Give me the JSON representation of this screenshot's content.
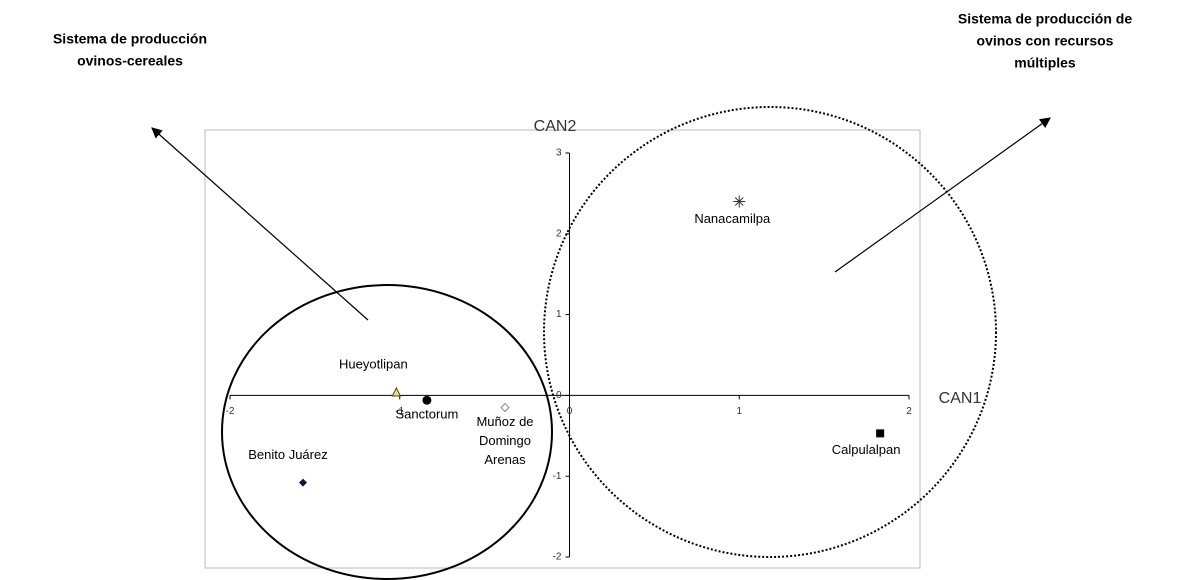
{
  "chart_data": {
    "type": "scatter",
    "xlabel": "CAN1",
    "ylabel": "CAN2",
    "xlim": [
      -2,
      2
    ],
    "ylim": [
      -2,
      3
    ],
    "xticks": [
      -2,
      -1,
      0,
      1,
      2
    ],
    "yticks": [
      -2,
      -1,
      0,
      1,
      2,
      3
    ],
    "series": [
      {
        "label": [
          "Nanacamilpa"
        ],
        "marker": "star",
        "color": "#333333",
        "x": [
          1.0
        ],
        "values": [
          2.4
        ]
      },
      {
        "label": [
          "Calpulalpan"
        ],
        "marker": "square",
        "color": "#000000",
        "x": [
          1.83
        ],
        "values": [
          -0.47
        ]
      },
      {
        "label": [
          "Benito Juárez"
        ],
        "marker": "diamond",
        "color": "#0a1a3a",
        "x": [
          -1.57
        ],
        "values": [
          -1.08
        ]
      },
      {
        "label": [
          "Hueyotlipan"
        ],
        "marker": "triangle",
        "color": "#4a4a00",
        "x": [
          -1.02
        ],
        "values": [
          0.03
        ]
      },
      {
        "label": [
          "Sanctorum"
        ],
        "marker": "circle",
        "color": "#000000",
        "x": [
          -0.84
        ],
        "values": [
          -0.06
        ]
      },
      {
        "label": [
          "Muñoz de",
          "Domingo",
          "Arenas"
        ],
        "marker": "open-diamond",
        "color": "#888888",
        "x": [
          -0.38
        ],
        "values": [
          -0.15
        ]
      }
    ],
    "annotations": [
      {
        "lines": [
          "Sistema de producción",
          "ovinos-cereales"
        ]
      },
      {
        "lines": [
          "Sistema de producción de",
          "ovinos con recursos",
          "múltiples"
        ]
      }
    ]
  }
}
